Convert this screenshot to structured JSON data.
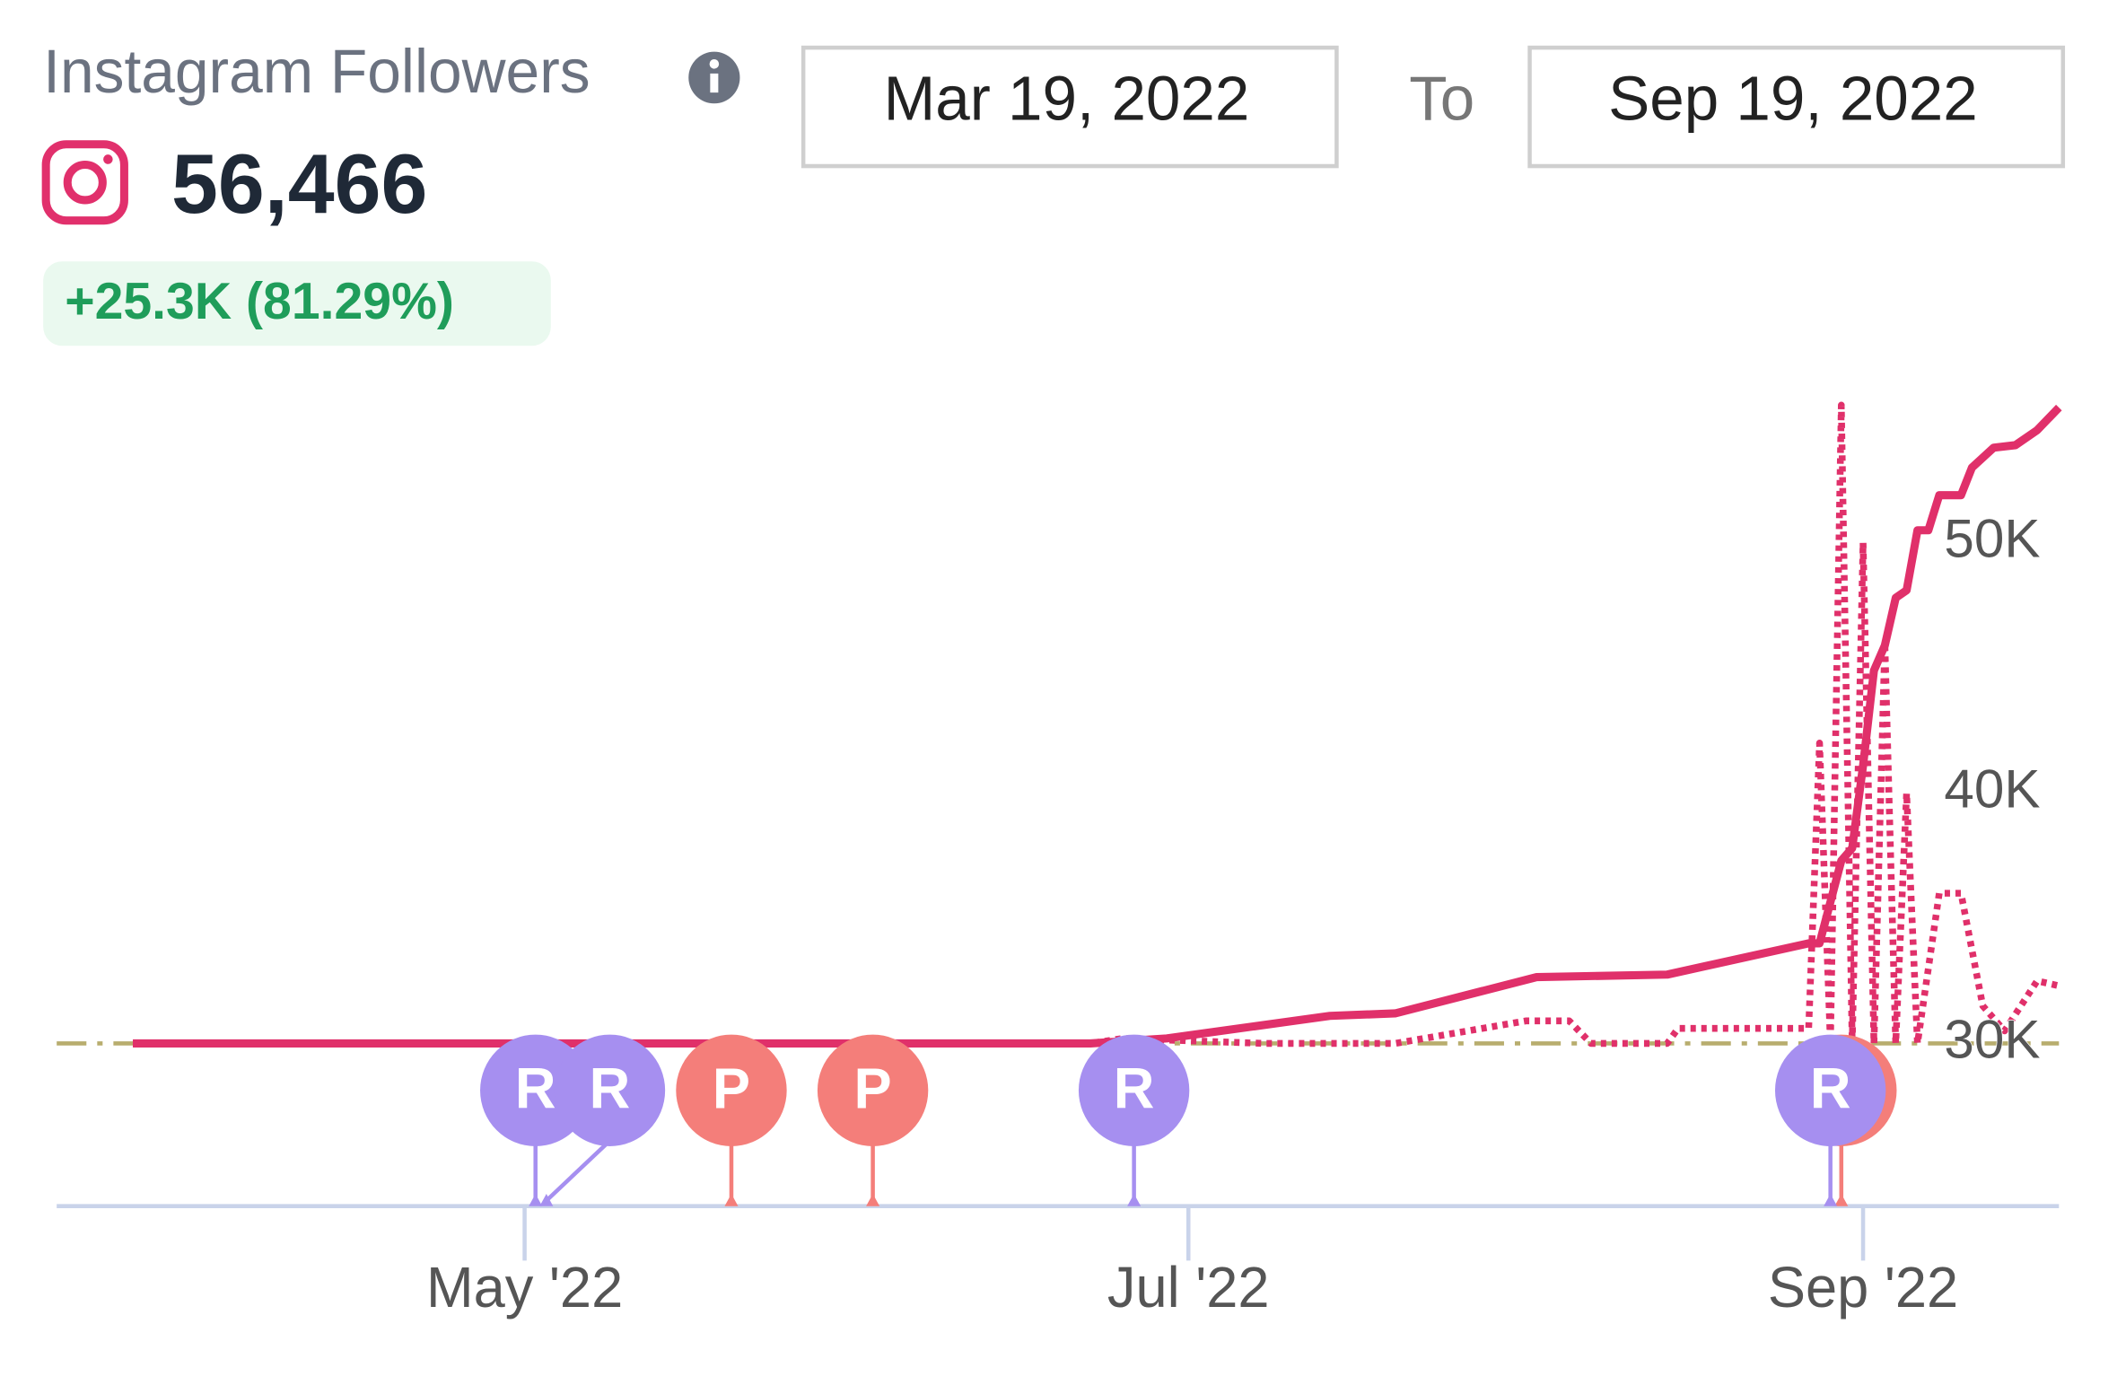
{
  "header": {
    "title": "Instagram Followers",
    "value": "56,466",
    "change": "+25.3K (81.29%)"
  },
  "date_range": {
    "start": "Mar 19, 2022",
    "separator": "To",
    "end": "Sep 19, 2022"
  },
  "chart_data": {
    "type": "line",
    "xlim": [
      "2022-03-19",
      "2022-09-19"
    ],
    "xticks": [
      {
        "value": "2022-05-01",
        "label": "May '22"
      },
      {
        "value": "2022-07-01",
        "label": "Jul '22"
      },
      {
        "value": "2022-09-01",
        "label": "Sep '22"
      }
    ],
    "ylim": [
      23500,
      57000
    ],
    "yticks": [
      {
        "value": 30000,
        "label": "30K"
      },
      {
        "value": 40000,
        "label": "40K"
      },
      {
        "value": 50000,
        "label": "50K"
      }
    ],
    "reference_line": {
      "value": 30000,
      "color": "#b8ad6e"
    },
    "series": [
      {
        "color": "#e0306a",
        "style": "dotted",
        "x": [
          "2022-03-26",
          "2022-06-22",
          "2022-06-25",
          "2022-07-08",
          "2022-07-20",
          "2022-08-01",
          "2022-08-05",
          "2022-08-07",
          "2022-08-14",
          "2022-08-15",
          "2022-08-27",
          "2022-08-28",
          "2022-08-29",
          "2022-08-30",
          "2022-08-31",
          "2022-09-01",
          "2022-09-02",
          "2022-09-03",
          "2022-09-04",
          "2022-09-05",
          "2022-09-06",
          "2022-09-08",
          "2022-09-10",
          "2022-09-12",
          "2022-09-14",
          "2022-09-17",
          "2022-09-19"
        ],
        "values": [
          30000,
          30000,
          30200,
          30000,
          30000,
          30900,
          30900,
          30000,
          30000,
          30600,
          30600,
          42000,
          30000,
          55500,
          30000,
          50000,
          30000,
          46000,
          30000,
          40000,
          30000,
          36000,
          36000,
          31500,
          30500,
          32500,
          32300
        ]
      },
      {
        "color": "#e0306a",
        "style": "solid",
        "x": [
          "2022-03-26",
          "2022-06-22",
          "2022-06-29",
          "2022-07-14",
          "2022-07-20",
          "2022-08-02",
          "2022-08-14",
          "2022-08-27",
          "2022-08-28",
          "2022-08-30",
          "2022-08-31",
          "2022-09-01",
          "2022-09-02",
          "2022-09-03",
          "2022-09-04",
          "2022-09-05",
          "2022-09-06",
          "2022-09-07",
          "2022-09-08",
          "2022-09-10",
          "2022-09-11",
          "2022-09-13",
          "2022-09-15",
          "2022-09-17",
          "2022-09-19"
        ],
        "values": [
          30000,
          30000,
          30200,
          31100,
          31200,
          32650,
          32750,
          34000,
          34000,
          37300,
          37800,
          41100,
          44900,
          45900,
          47800,
          48100,
          50500,
          50500,
          51900,
          51900,
          53000,
          53800,
          53900,
          54500,
          55400
        ]
      }
    ],
    "markers": [
      {
        "date": "2022-05-02",
        "label": "R",
        "color": "#a68ff0"
      },
      {
        "date": "2022-05-03",
        "label": "R",
        "color": "#a68ff0"
      },
      {
        "date": "2022-05-20",
        "label": "P",
        "color": "#f47e7a"
      },
      {
        "date": "2022-06-02",
        "label": "P",
        "color": "#f47e7a"
      },
      {
        "date": "2022-06-26",
        "label": "R",
        "color": "#a68ff0"
      },
      {
        "date": "2022-08-30",
        "label": "P",
        "color": "#f47e7a"
      },
      {
        "date": "2022-08-29",
        "label": "R",
        "color": "#a68ff0"
      }
    ]
  }
}
